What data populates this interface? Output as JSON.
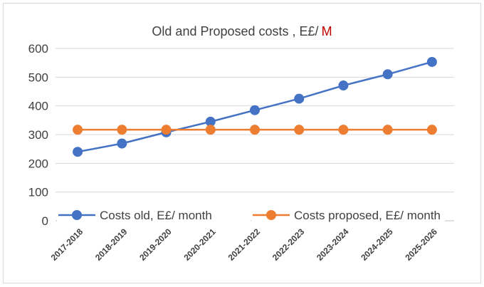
{
  "chart_data": {
    "type": "line",
    "title_main": "Old and Proposed costs , E£/",
    "title_accent": "M",
    "categories": [
      "2017-2018",
      "2018-2019",
      "2019-2020",
      "2020-2021",
      "2021-2022",
      "2022-2023",
      "2023-2024",
      "2024-2025",
      "2025-2026"
    ],
    "ylim": [
      0,
      600
    ],
    "yticks": [
      0,
      100,
      200,
      300,
      400,
      500,
      600
    ],
    "grid": true,
    "legend_position": "bottom",
    "series": [
      {
        "name": "Costs old, E£/ month",
        "color": "#4472C4",
        "values": [
          240,
          269,
          308,
          345,
          385,
          425,
          471,
          510,
          553
        ]
      },
      {
        "name": "Costs proposed, E£/ month",
        "color": "#ED7D31",
        "values": [
          317,
          317,
          317,
          317,
          317,
          317,
          317,
          317,
          317
        ]
      }
    ],
    "accent_color": "#C00000"
  }
}
